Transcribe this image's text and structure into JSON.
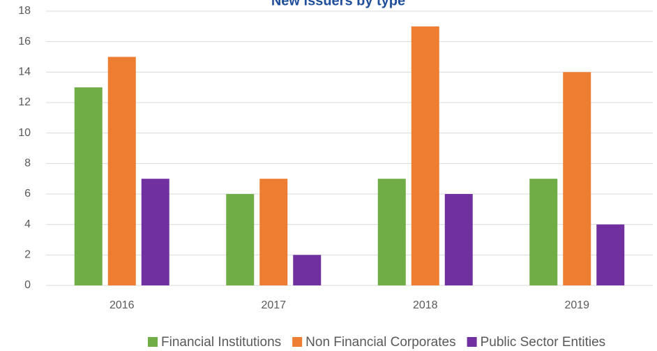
{
  "chart_data": {
    "type": "bar",
    "title": "New issuers by type",
    "categories": [
      "2016",
      "2017",
      "2018",
      "2019"
    ],
    "series": [
      {
        "name": "Financial Institutions",
        "color": "#70ad47",
        "values": [
          13,
          6,
          7,
          7
        ]
      },
      {
        "name": "Non Financial Corporates",
        "color": "#ed7d31",
        "values": [
          15,
          7,
          17,
          14
        ]
      },
      {
        "name": "Public Sector Entities",
        "color": "#7030a0",
        "values": [
          7,
          2,
          6,
          4
        ]
      }
    ],
    "ylim": [
      0,
      18
    ],
    "yticks": [
      0,
      2,
      4,
      6,
      8,
      10,
      12,
      14,
      16,
      18
    ],
    "grid": true,
    "legend": "bottom"
  }
}
